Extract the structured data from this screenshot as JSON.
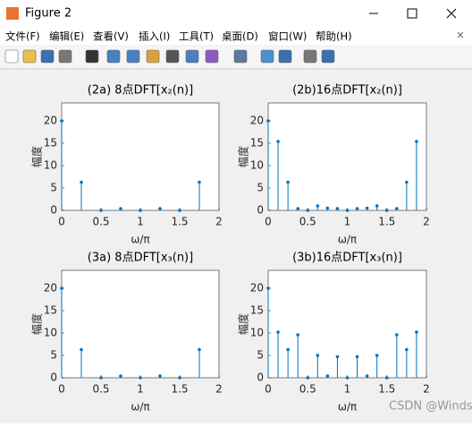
{
  "window": {
    "title": "Figure 2",
    "menu": [
      "文件(F)",
      "编辑(E)",
      "查看(V)",
      "插入(I)",
      "工具(T)",
      "桌面(D)",
      "窗口(W)",
      "帮助(H)"
    ]
  },
  "watermark": "CSDN @Windsky_Yan",
  "chart_data": [
    {
      "type": "stem",
      "title": "(2a) 8点DFT[x₂(n)]",
      "xlabel": "ω/π",
      "ylabel": "幅度",
      "color": "#0072bd",
      "x": [
        0,
        0.25,
        0.5,
        0.75,
        1,
        1.25,
        1.5,
        1.75
      ],
      "values": [
        20,
        6.3,
        0,
        0.4,
        0,
        0.4,
        0,
        6.3
      ],
      "xlim": [
        0,
        2
      ],
      "ylim": [
        0,
        24
      ],
      "xticks": [
        0,
        0.5,
        1,
        1.5,
        2
      ],
      "yticks": [
        0,
        5,
        10,
        15,
        20
      ]
    },
    {
      "type": "stem",
      "title": "(2b)16点DFT[x₂(n)]",
      "xlabel": "ω/π",
      "ylabel": "幅度",
      "color": "#0072bd",
      "x": [
        0,
        0.125,
        0.25,
        0.375,
        0.5,
        0.625,
        0.75,
        0.875,
        1,
        1.125,
        1.25,
        1.375,
        1.5,
        1.625,
        1.75,
        1.875
      ],
      "values": [
        20,
        15.4,
        6.3,
        0.4,
        0,
        1,
        0.5,
        0.4,
        0,
        0.4,
        0.5,
        1,
        0,
        0.4,
        6.3,
        15.4
      ],
      "xlim": [
        0,
        2
      ],
      "ylim": [
        0,
        24
      ],
      "xticks": [
        0,
        0.5,
        1,
        1.5,
        2
      ],
      "yticks": [
        0,
        5,
        10,
        15,
        20
      ]
    },
    {
      "type": "stem",
      "title": "(3a) 8点DFT[x₃(n)]",
      "xlabel": "ω/π",
      "ylabel": "幅度",
      "color": "#0072bd",
      "x": [
        0,
        0.25,
        0.5,
        0.75,
        1,
        1.25,
        1.5,
        1.75
      ],
      "values": [
        20,
        6.3,
        0,
        0.4,
        0,
        0.4,
        0,
        6.3
      ],
      "xlim": [
        0,
        2
      ],
      "ylim": [
        0,
        24
      ],
      "xticks": [
        0,
        0.5,
        1,
        1.5,
        2
      ],
      "yticks": [
        0,
        5,
        10,
        15,
        20
      ]
    },
    {
      "type": "stem",
      "title": "(3b)16点DFT[x₃(n)]",
      "xlabel": "ω/π",
      "ylabel": "幅度",
      "color": "#0072bd",
      "x": [
        0,
        0.125,
        0.25,
        0.375,
        0.5,
        0.625,
        0.75,
        0.875,
        1,
        1.125,
        1.25,
        1.375,
        1.5,
        1.625,
        1.75,
        1.875
      ],
      "values": [
        20,
        10.2,
        6.3,
        9.6,
        0,
        5,
        0.4,
        4.7,
        0,
        4.7,
        0.4,
        5,
        0,
        9.6,
        6.3,
        10.2
      ],
      "xlim": [
        0,
        2
      ],
      "ylim": [
        0,
        24
      ],
      "xticks": [
        0,
        0.5,
        1,
        1.5,
        2
      ],
      "yticks": [
        0,
        5,
        10,
        15,
        20
      ]
    }
  ]
}
